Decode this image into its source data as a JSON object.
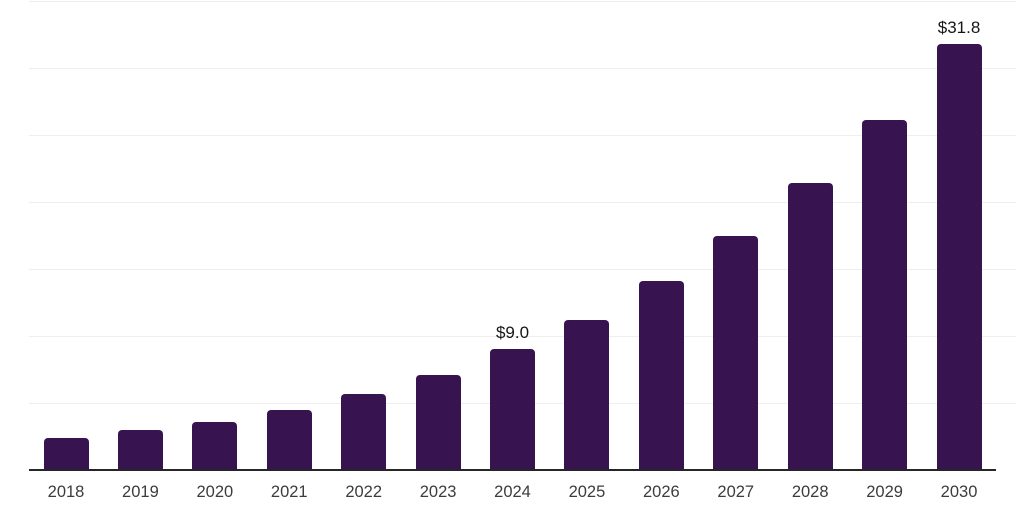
{
  "chart_data": {
    "type": "bar",
    "title": "",
    "xlabel": "",
    "ylabel": "",
    "categories": [
      "2018",
      "2019",
      "2020",
      "2021",
      "2022",
      "2023",
      "2024",
      "2025",
      "2026",
      "2027",
      "2028",
      "2029",
      "2030"
    ],
    "values": [
      2.4,
      3.0,
      3.6,
      4.5,
      5.7,
      7.1,
      9.0,
      11.2,
      14.1,
      17.5,
      21.4,
      26.1,
      31.8
    ],
    "data_labels": {
      "2024": "$9.0",
      "2030": "$31.8"
    },
    "ylim": [
      0,
      35
    ],
    "grid_step": 5,
    "grid": "horizontal",
    "legend_position": "none",
    "y_tick_labels_visible": false,
    "bar_color": "#371350",
    "axis_line_color": "#262626",
    "gridline_color": "#EEEEEE",
    "x_tick_color": "#3C3C3C",
    "data_label_color": "#161616",
    "background_color": "#FFFFFF"
  }
}
